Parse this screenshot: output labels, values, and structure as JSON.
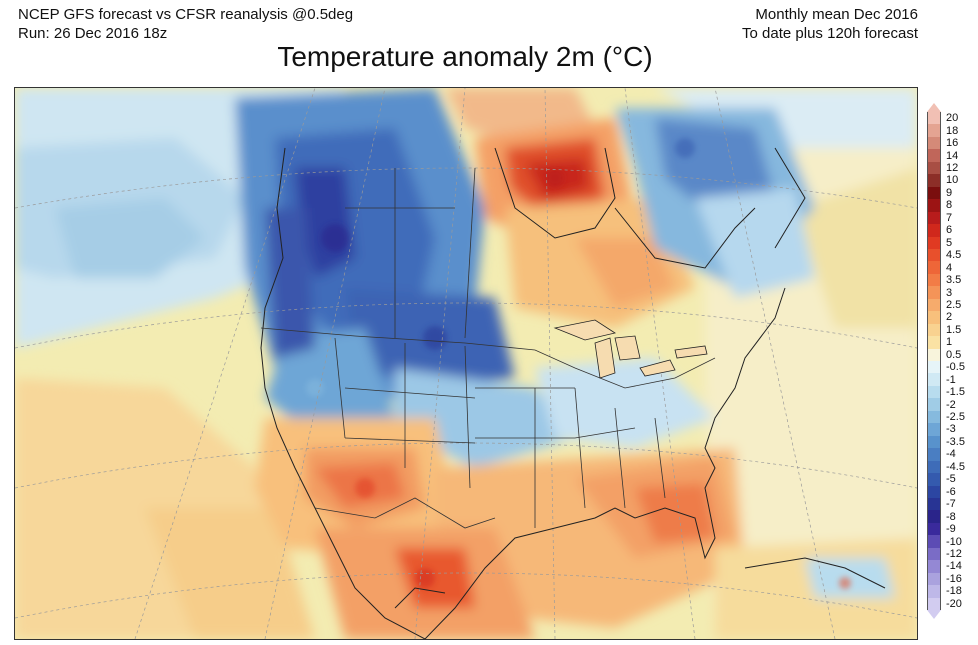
{
  "header": {
    "left_line1": "NCEP GFS forecast vs CFSR reanalysis @0.5deg",
    "left_line2": "Run: 26 Dec 2016 18z",
    "right_line1": "Monthly mean Dec 2016",
    "right_line2": "To date plus 120h forecast"
  },
  "title": "Temperature anomaly 2m (°C)",
  "colorbar": {
    "levels": [
      {
        "label": "20",
        "color": "#f1c0b4"
      },
      {
        "label": "18",
        "color": "#e4a492"
      },
      {
        "label": "16",
        "color": "#d48a78"
      },
      {
        "label": "14",
        "color": "#c0665a"
      },
      {
        "label": "12",
        "color": "#a84e44"
      },
      {
        "label": "10",
        "color": "#8c2e28"
      },
      {
        "label": "9",
        "color": "#7a0e0e"
      },
      {
        "label": "8",
        "color": "#9c1414"
      },
      {
        "label": "7",
        "color": "#b81c1c"
      },
      {
        "label": "6",
        "color": "#d0281c"
      },
      {
        "label": "5",
        "color": "#e03a22"
      },
      {
        "label": "4.5",
        "color": "#e8502c"
      },
      {
        "label": "4",
        "color": "#ee6638"
      },
      {
        "label": "3.5",
        "color": "#f27c46"
      },
      {
        "label": "3",
        "color": "#f49458"
      },
      {
        "label": "2.5",
        "color": "#f6ab6c"
      },
      {
        "label": "2",
        "color": "#f8c07c"
      },
      {
        "label": "1.5",
        "color": "#f9d290"
      },
      {
        "label": "1",
        "color": "#fae2a4"
      },
      {
        "label": "0.5",
        "color": "#f8f4dc"
      },
      {
        "label": "-0.5",
        "color": "#e6f4f8"
      },
      {
        "label": "-1",
        "color": "#d0e9f4"
      },
      {
        "label": "-1.5",
        "color": "#b8dcee"
      },
      {
        "label": "-2",
        "color": "#a0cce6"
      },
      {
        "label": "-2.5",
        "color": "#86bade"
      },
      {
        "label": "-3",
        "color": "#6ea6d6"
      },
      {
        "label": "-3.5",
        "color": "#5892cc"
      },
      {
        "label": "-4",
        "color": "#4a7ec2"
      },
      {
        "label": "-4.5",
        "color": "#3e6cb8"
      },
      {
        "label": "-5",
        "color": "#345aae"
      },
      {
        "label": "-6",
        "color": "#2c46a2"
      },
      {
        "label": "-7",
        "color": "#283494"
      },
      {
        "label": "-8",
        "color": "#2a248a"
      },
      {
        "label": "-9",
        "color": "#3a2a9c"
      },
      {
        "label": "-10",
        "color": "#5c4cb4"
      },
      {
        "label": "-12",
        "color": "#7a6cc6"
      },
      {
        "label": "-14",
        "color": "#9488d4"
      },
      {
        "label": "-16",
        "color": "#aaa2de"
      },
      {
        "label": "-18",
        "color": "#beb8e8"
      },
      {
        "label": "-20",
        "color": "#d2ccf0"
      }
    ]
  }
}
